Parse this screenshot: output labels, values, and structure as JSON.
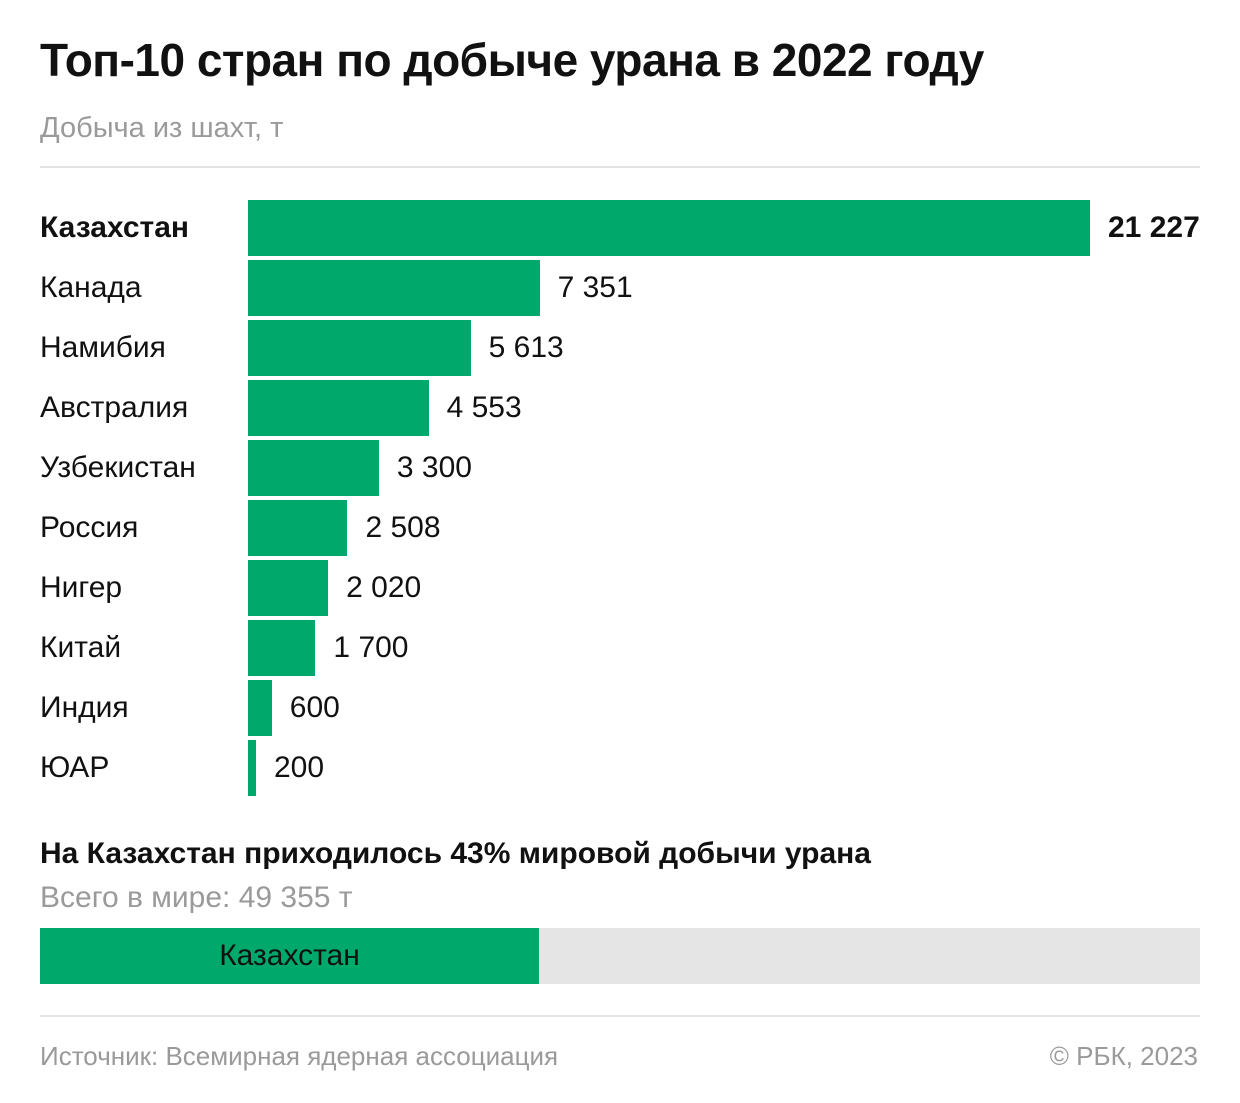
{
  "title": "Топ-10 стран по добыче урана в 2022 году",
  "subtitle": "Добыча из шахт, т",
  "colors": {
    "bar": "#00a86b",
    "track": "#e5e5e5",
    "muted": "#9a9a9a"
  },
  "chart_data": [
    {
      "type": "bar",
      "orientation": "horizontal",
      "title": "Топ-10 стран по добыче урана в 2022 году",
      "ylabel": "Добыча из шахт, т",
      "categories": [
        "Казахстан",
        "Канада",
        "Намибия",
        "Австралия",
        "Узбекистан",
        "Россия",
        "Нигер",
        "Китай",
        "Индия",
        "ЮАР"
      ],
      "values": [
        21227,
        7351,
        5613,
        4553,
        3300,
        2508,
        2020,
        1700,
        600,
        200
      ],
      "value_labels": [
        "21 227",
        "7 351",
        "5 613",
        "4 553",
        "3 300",
        "2 508",
        "2 020",
        "1 700",
        "600",
        "200"
      ],
      "highlight": "Казахстан",
      "xlim": [
        0,
        21227
      ],
      "grid": false
    },
    {
      "type": "bar",
      "orientation": "horizontal",
      "stacked_share": true,
      "title": "На Казахстан приходилось 43% мировой добычи урана",
      "subtitle": "Всего в мире: 49 355 т",
      "total": 49355,
      "segment_label": "Казахстан",
      "share": 0.43
    }
  ],
  "footer": {
    "source": "Источник: Всемирная ядерная ассоциация",
    "copyright": "© РБК, 2023"
  }
}
